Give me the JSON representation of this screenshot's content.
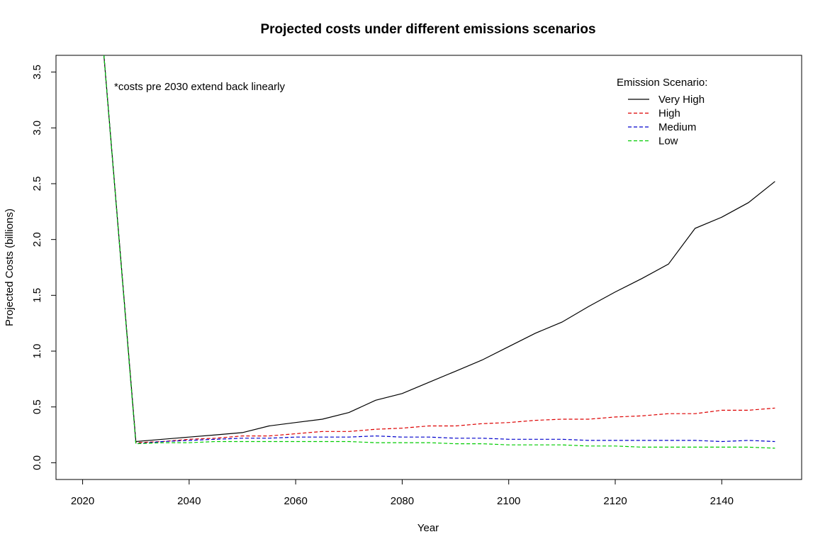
{
  "chart_data": {
    "type": "line",
    "title": "Projected costs under different emissions scenarios",
    "xlabel": "Year",
    "ylabel": "Projected Costs (billions)",
    "xlim": [
      2015,
      2155
    ],
    "ylim": [
      -0.15,
      3.65
    ],
    "x_ticks": [
      2020,
      2040,
      2060,
      2080,
      2100,
      2120,
      2140
    ],
    "y_ticks": [
      0.0,
      0.5,
      1.0,
      1.5,
      2.0,
      2.5,
      3.0,
      3.5
    ],
    "y_tick_labels": [
      "0.0",
      "0.5",
      "1.0",
      "1.5",
      "2.0",
      "2.5",
      "3.0",
      "3.5"
    ],
    "grid": false,
    "legend": {
      "title": "Emission Scenario:",
      "position": "top-right"
    },
    "annotation": "*costs pre 2030 extend back linearly",
    "series": [
      {
        "name": "Very High",
        "color": "#000000",
        "dash": "solid",
        "x": [
          2024,
          2030,
          2035,
          2040,
          2045,
          2050,
          2055,
          2060,
          2065,
          2070,
          2075,
          2080,
          2085,
          2090,
          2095,
          2100,
          2105,
          2110,
          2115,
          2120,
          2125,
          2130,
          2135,
          2140,
          2145,
          2150
        ],
        "y": [
          3.65,
          0.19,
          0.21,
          0.23,
          0.25,
          0.27,
          0.33,
          0.36,
          0.39,
          0.45,
          0.56,
          0.62,
          0.72,
          0.82,
          0.92,
          1.04,
          1.16,
          1.26,
          1.4,
          1.53,
          1.65,
          1.78,
          2.1,
          2.2,
          2.33,
          2.52
        ]
      },
      {
        "name": "High",
        "color": "#dd0000",
        "dash": "dashed",
        "x": [
          2024,
          2030,
          2035,
          2040,
          2045,
          2050,
          2055,
          2060,
          2065,
          2070,
          2075,
          2080,
          2085,
          2090,
          2095,
          2100,
          2105,
          2110,
          2115,
          2120,
          2125,
          2130,
          2135,
          2140,
          2145,
          2150
        ],
        "y": [
          3.65,
          0.18,
          0.19,
          0.21,
          0.22,
          0.24,
          0.24,
          0.26,
          0.28,
          0.28,
          0.3,
          0.31,
          0.33,
          0.33,
          0.35,
          0.36,
          0.38,
          0.39,
          0.39,
          0.41,
          0.42,
          0.44,
          0.44,
          0.47,
          0.47,
          0.49
        ]
      },
      {
        "name": "Medium",
        "color": "#0000cc",
        "dash": "dashed",
        "x": [
          2024,
          2030,
          2035,
          2040,
          2045,
          2050,
          2055,
          2060,
          2065,
          2070,
          2075,
          2080,
          2085,
          2090,
          2095,
          2100,
          2105,
          2110,
          2115,
          2120,
          2125,
          2130,
          2135,
          2140,
          2145,
          2150
        ],
        "y": [
          3.65,
          0.17,
          0.19,
          0.2,
          0.21,
          0.22,
          0.22,
          0.23,
          0.23,
          0.23,
          0.24,
          0.23,
          0.23,
          0.22,
          0.22,
          0.21,
          0.21,
          0.21,
          0.2,
          0.2,
          0.2,
          0.2,
          0.2,
          0.19,
          0.2,
          0.19
        ]
      },
      {
        "name": "Low",
        "color": "#00cc00",
        "dash": "dashed",
        "x": [
          2024,
          2030,
          2035,
          2040,
          2045,
          2050,
          2055,
          2060,
          2065,
          2070,
          2075,
          2080,
          2085,
          2090,
          2095,
          2100,
          2105,
          2110,
          2115,
          2120,
          2125,
          2130,
          2135,
          2140,
          2145,
          2150
        ],
        "y": [
          3.65,
          0.17,
          0.18,
          0.18,
          0.19,
          0.19,
          0.19,
          0.19,
          0.19,
          0.19,
          0.18,
          0.18,
          0.18,
          0.17,
          0.17,
          0.16,
          0.16,
          0.16,
          0.15,
          0.15,
          0.14,
          0.14,
          0.14,
          0.14,
          0.14,
          0.13
        ]
      }
    ]
  }
}
